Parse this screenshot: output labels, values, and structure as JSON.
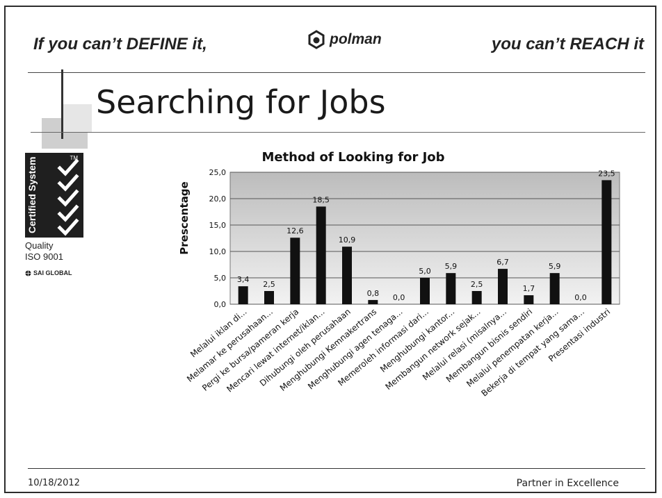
{
  "header": {
    "tagline_left": "If you can’t DEFINE it,",
    "tagline_right": "you can’t REACH it",
    "logo_text": "polman"
  },
  "slide": {
    "title": "Searching for Jobs"
  },
  "certification": {
    "badge_text": "Certified System",
    "tm": "TM",
    "quality": "Quality",
    "standard": "ISO 9001",
    "sai": "SAI GLOBAL"
  },
  "footer": {
    "date": "10/18/2012",
    "tagline": "Partner in Excellence"
  },
  "colors": {
    "bar": "#111111",
    "plot_top": "#bcbcbc",
    "plot_bottom": "#f2f2f2"
  },
  "chart_data": {
    "type": "bar",
    "title": "Method of Looking for Job",
    "xlabel": "",
    "ylabel": "Prescentage",
    "ylim": [
      0,
      25
    ],
    "yticks": [
      "0,0",
      "5,0",
      "10,0",
      "15,0",
      "20,0",
      "25,0"
    ],
    "grid": true,
    "legend": "none",
    "categories": [
      "Melalui iklan di...",
      "Melamar ke perusahaan...",
      "Pergi ke bursa/pameran kerja",
      "Mencari lewat internet/iklan...",
      "Dihubungi oleh perusahaan",
      "Menghubungi Kemnakertrans",
      "Menghubungi agen tenaga...",
      "Memeroleh informasi dari...",
      "Menghubungi kantor...",
      "Membangun network sejak...",
      "Melalui relasi (misalnya...",
      "Membangun bisnis sendiri",
      "Melalui penempatan kerja...",
      "Bekerja di tempat yang sama...",
      "Presentasi industri"
    ],
    "values": [
      3.4,
      2.5,
      12.6,
      18.5,
      10.9,
      0.8,
      0.0,
      5.0,
      5.9,
      2.5,
      6.7,
      1.7,
      5.9,
      0.0,
      23.5
    ],
    "value_labels": [
      "3,4",
      "2,5",
      "12,6",
      "18,5",
      "10,9",
      "0,8",
      "0,0",
      "5,0",
      "5,9",
      "2,5",
      "6,7",
      "1,7",
      "5,9",
      "0,0",
      "23,5"
    ]
  }
}
